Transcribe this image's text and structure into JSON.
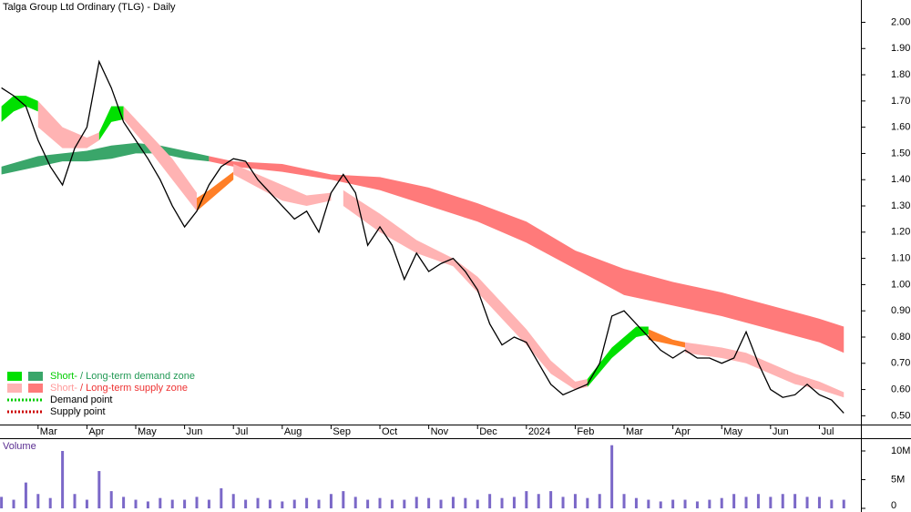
{
  "chart_data": [
    {
      "type": "line",
      "title": "Talga Group Ltd Ordinary (TLG) - Daily",
      "x": [
        -0.75,
        -0.5,
        -0.25,
        0,
        0.25,
        0.5,
        0.75,
        1,
        1.25,
        1.5,
        1.75,
        2,
        2.25,
        2.5,
        2.75,
        3,
        3.25,
        3.5,
        3.75,
        4,
        4.25,
        4.5,
        4.75,
        5,
        5.25,
        5.5,
        5.75,
        6,
        6.25,
        6.5,
        6.75,
        7,
        7.25,
        7.5,
        7.75,
        8,
        8.25,
        8.5,
        8.75,
        9,
        9.25,
        9.5,
        9.75,
        10,
        10.25,
        10.5,
        10.75,
        11,
        11.25,
        11.5,
        11.75,
        12,
        12.25,
        12.5,
        12.75,
        13,
        13.25,
        13.5,
        13.75,
        14,
        14.25,
        14.5,
        14.75,
        15,
        15.25,
        15.5,
        15.75,
        16,
        16.25,
        16.5
      ],
      "series": [
        {
          "color": "#000000",
          "values": [
            1.75,
            1.72,
            1.68,
            1.55,
            1.45,
            1.38,
            1.52,
            1.6,
            1.85,
            1.75,
            1.62,
            1.55,
            1.48,
            1.4,
            1.3,
            1.22,
            1.28,
            1.38,
            1.45,
            1.48,
            1.47,
            1.4,
            1.35,
            1.3,
            1.25,
            1.28,
            1.2,
            1.35,
            1.42,
            1.35,
            1.15,
            1.22,
            1.15,
            1.02,
            1.12,
            1.05,
            1.08,
            1.1,
            1.05,
            0.98,
            0.85,
            0.77,
            0.8,
            0.78,
            0.7,
            0.62,
            0.58,
            0.6,
            0.62,
            0.7,
            0.88,
            0.9,
            0.85,
            0.8,
            0.75,
            0.72,
            0.75,
            0.72,
            0.72,
            0.7,
            0.72,
            0.82,
            0.7,
            0.6,
            0.57,
            0.58,
            0.62,
            0.58,
            0.56,
            0.51
          ]
        }
      ],
      "zones": [
        {
          "color": "#3aa66a",
          "x": [
            -0.75,
            0,
            0.5,
            1,
            1.5,
            2,
            2.5,
            3,
            3.5
          ],
          "lower": [
            1.42,
            1.45,
            1.47,
            1.47,
            1.48,
            1.5,
            1.5,
            1.48,
            1.47
          ],
          "upper": [
            1.45,
            1.49,
            1.5,
            1.51,
            1.53,
            1.54,
            1.53,
            1.51,
            1.49
          ]
        },
        {
          "color": "#ff7a7a",
          "x": [
            3.5,
            4,
            5,
            6,
            7,
            8,
            9,
            10,
            11,
            12,
            13,
            14,
            15,
            16,
            16.5
          ],
          "lower": [
            1.47,
            1.45,
            1.43,
            1.4,
            1.36,
            1.3,
            1.24,
            1.16,
            1.06,
            0.96,
            0.92,
            0.88,
            0.83,
            0.78,
            0.74
          ],
          "upper": [
            1.49,
            1.47,
            1.46,
            1.42,
            1.41,
            1.37,
            1.31,
            1.24,
            1.13,
            1.06,
            1.01,
            0.97,
            0.92,
            0.87,
            0.84
          ]
        },
        {
          "color": "#00e000",
          "x": [
            -0.75,
            -0.5,
            -0.25,
            0
          ],
          "lower": [
            1.62,
            1.66,
            1.68,
            1.66
          ],
          "upper": [
            1.68,
            1.72,
            1.72,
            1.7
          ]
        },
        {
          "color": "#ffb3b3",
          "x": [
            0,
            0.5,
            1,
            1.25
          ],
          "lower": [
            1.6,
            1.52,
            1.52,
            1.55
          ],
          "upper": [
            1.7,
            1.6,
            1.56,
            1.58
          ]
        },
        {
          "color": "#00e000",
          "x": [
            1.25,
            1.5,
            1.75
          ],
          "lower": [
            1.55,
            1.62,
            1.63
          ],
          "upper": [
            1.58,
            1.68,
            1.68
          ]
        },
        {
          "color": "#ffb3b3",
          "x": [
            1.75,
            2.25,
            2.75,
            3.25
          ],
          "lower": [
            1.63,
            1.52,
            1.4,
            1.28
          ],
          "upper": [
            1.68,
            1.58,
            1.48,
            1.35
          ]
        },
        {
          "color": "#ff7f27",
          "x": [
            3.25,
            3.5,
            4
          ],
          "lower": [
            1.28,
            1.32,
            1.4
          ],
          "upper": [
            1.33,
            1.36,
            1.43
          ]
        },
        {
          "color": "#ffb3b3",
          "x": [
            4,
            4.5,
            5,
            5.5,
            6
          ],
          "lower": [
            1.42,
            1.37,
            1.32,
            1.3,
            1.32
          ],
          "upper": [
            1.46,
            1.42,
            1.38,
            1.34,
            1.35
          ]
        },
        {
          "color": "#ffb3b3",
          "x": [
            6.25,
            7,
            7.75,
            8.5,
            9,
            9.5,
            10,
            10.5,
            11,
            11.25
          ],
          "lower": [
            1.3,
            1.2,
            1.12,
            1.07,
            0.97,
            0.87,
            0.77,
            0.66,
            0.6,
            0.61
          ],
          "upper": [
            1.36,
            1.27,
            1.17,
            1.1,
            1.03,
            0.93,
            0.83,
            0.71,
            0.63,
            0.64
          ]
        },
        {
          "color": "#00e000",
          "x": [
            11.25,
            11.75,
            12.25,
            12.5
          ],
          "lower": [
            0.61,
            0.72,
            0.8,
            0.81
          ],
          "upper": [
            0.64,
            0.76,
            0.84,
            0.84
          ]
        },
        {
          "color": "#ff7f27",
          "x": [
            12.5,
            13,
            13.25
          ],
          "lower": [
            0.79,
            0.77,
            0.76
          ],
          "upper": [
            0.83,
            0.79,
            0.78
          ]
        },
        {
          "color": "#ffb3b3",
          "x": [
            13.25,
            14,
            14.5,
            15,
            15.5,
            16,
            16.5
          ],
          "lower": [
            0.74,
            0.72,
            0.7,
            0.66,
            0.62,
            0.6,
            0.57
          ],
          "upper": [
            0.78,
            0.76,
            0.74,
            0.7,
            0.66,
            0.63,
            0.59
          ]
        }
      ],
      "xlim": [
        -0.78,
        16.85
      ],
      "xticks": [
        {
          "value": 0,
          "label": "Mar"
        },
        {
          "value": 1,
          "label": "Apr"
        },
        {
          "value": 2,
          "label": "May"
        },
        {
          "value": 3,
          "label": "Jun"
        },
        {
          "value": 4,
          "label": "Jul"
        },
        {
          "value": 5,
          "label": "Aug"
        },
        {
          "value": 6,
          "label": "Sep"
        },
        {
          "value": 7,
          "label": "Oct"
        },
        {
          "value": 8,
          "label": "Nov"
        },
        {
          "value": 9,
          "label": "Dec"
        },
        {
          "value": 10,
          "label": "2024"
        },
        {
          "value": 11,
          "label": "Feb"
        },
        {
          "value": 12,
          "label": "Mar"
        },
        {
          "value": 13,
          "label": "Apr"
        },
        {
          "value": 14,
          "label": "May"
        },
        {
          "value": 15,
          "label": "Jun"
        },
        {
          "value": 16,
          "label": "Jul"
        }
      ],
      "ylim": [
        0.47,
        2.085
      ],
      "yticks": [
        {
          "value": 0.5,
          "label": "0.50"
        },
        {
          "value": 0.6,
          "label": "0.60"
        },
        {
          "value": 0.7,
          "label": "0.70"
        },
        {
          "value": 0.8,
          "label": "0.80"
        },
        {
          "value": 0.9,
          "label": "0.90"
        },
        {
          "value": 1.0,
          "label": "1.00"
        },
        {
          "value": 1.1,
          "label": "1.10"
        },
        {
          "value": 1.2,
          "label": "1.20"
        },
        {
          "value": 1.3,
          "label": "1.30"
        },
        {
          "value": 1.4,
          "label": "1.40"
        },
        {
          "value": 1.5,
          "label": "1.50"
        },
        {
          "value": 1.6,
          "label": "1.60"
        },
        {
          "value": 1.7,
          "label": "1.70"
        },
        {
          "value": 1.8,
          "label": "1.80"
        },
        {
          "value": 1.9,
          "label": "1.90"
        },
        {
          "value": 2.0,
          "label": "2.00"
        }
      ],
      "legend": [
        {
          "short": "Short-",
          "sep": " / ",
          "long": "Long-term demand zone",
          "colors": [
            "#00e000",
            "#3aa66a"
          ],
          "text_colors": [
            "#00cc00",
            "#229955"
          ]
        },
        {
          "short": "Short-",
          "sep": " / ",
          "long": "Long-term supply zone",
          "colors": [
            "#ffb3b3",
            "#ff7a7a"
          ],
          "text_colors": [
            "#ff9999",
            "#ee3333"
          ]
        }
      ],
      "points": [
        {
          "label": "Demand point",
          "color": "#00cc00"
        },
        {
          "label": "Supply point",
          "color": "#cc0000"
        }
      ]
    },
    {
      "type": "bar",
      "title": "Volume",
      "color": "#7b68c8",
      "x": [
        -0.75,
        -0.5,
        -0.25,
        0,
        0.25,
        0.5,
        0.75,
        1,
        1.25,
        1.5,
        1.75,
        2,
        2.25,
        2.5,
        2.75,
        3,
        3.25,
        3.5,
        3.75,
        4,
        4.25,
        4.5,
        4.75,
        5,
        5.25,
        5.5,
        5.75,
        6,
        6.25,
        6.5,
        6.75,
        7,
        7.25,
        7.5,
        7.75,
        8,
        8.25,
        8.5,
        8.75,
        9,
        9.25,
        9.5,
        9.75,
        10,
        10.25,
        10.5,
        10.75,
        11,
        11.25,
        11.5,
        11.75,
        12,
        12.25,
        12.5,
        12.75,
        13,
        13.25,
        13.5,
        13.75,
        14,
        14.25,
        14.5,
        14.75,
        15,
        15.25,
        15.5,
        15.75,
        16,
        16.25,
        16.5
      ],
      "values": [
        2000000,
        1500000,
        4500000,
        2500000,
        1800000,
        10000000,
        2500000,
        1500000,
        6500000,
        3000000,
        2000000,
        1500000,
        1200000,
        1800000,
        1500000,
        1500000,
        2000000,
        1500000,
        3500000,
        2500000,
        1500000,
        1800000,
        1500000,
        1200000,
        1500000,
        1800000,
        1500000,
        2500000,
        3000000,
        2000000,
        1500000,
        1800000,
        1500000,
        1500000,
        2000000,
        1800000,
        1500000,
        2000000,
        1800000,
        1500000,
        2500000,
        1800000,
        2000000,
        3000000,
        2500000,
        3000000,
        2000000,
        2500000,
        1800000,
        2500000,
        11000000,
        2500000,
        1800000,
        1500000,
        1200000,
        1500000,
        1500000,
        1200000,
        1500000,
        1800000,
        2500000,
        2000000,
        2500000,
        2000000,
        2500000,
        2500000,
        2000000,
        2000000,
        1500000,
        1500000
      ],
      "xlim": [
        -0.78,
        16.85
      ],
      "ylim": [
        0,
        12000000
      ],
      "yticks": [
        0,
        {
          "value": 5000000,
          "label": "5M"
        },
        {
          "value": 10000000,
          "label": "10M"
        }
      ]
    }
  ]
}
